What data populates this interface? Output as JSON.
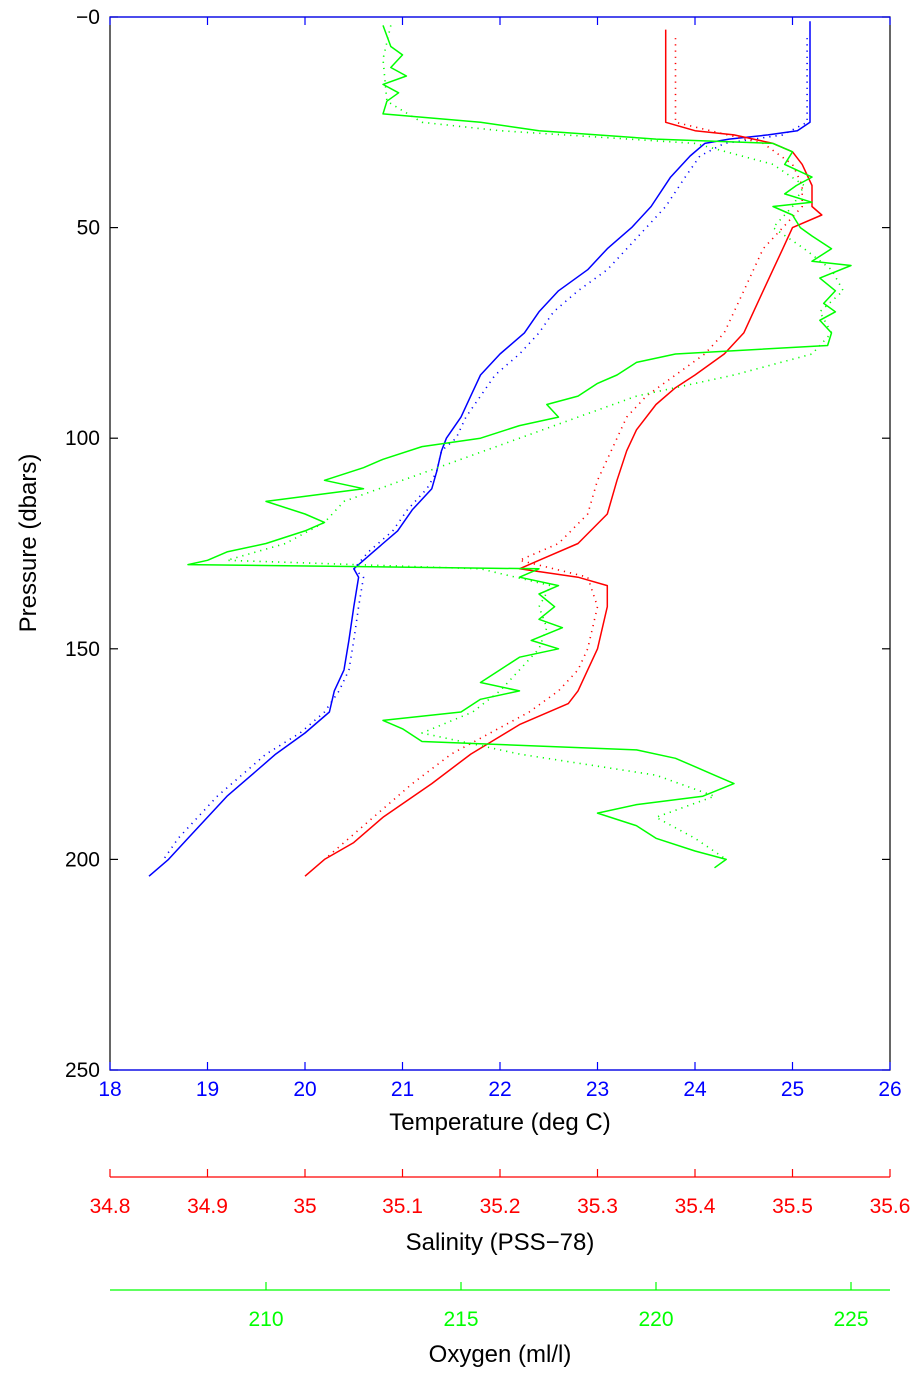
{
  "chart_data": {
    "type": "line",
    "title": "",
    "ylabel": "Pressure (dbars)",
    "ylim": [
      0,
      250
    ],
    "y_reversed": true,
    "yticks": [
      0,
      50,
      100,
      150,
      200,
      250
    ],
    "ytick_labels": [
      "−0",
      "50",
      "100",
      "150",
      "200",
      "250"
    ],
    "axes": [
      {
        "id": "temperature",
        "label": "Temperature (deg C)",
        "color": "#0000ff",
        "xlim": [
          18,
          26
        ],
        "ticks": [
          18,
          19,
          20,
          21,
          22,
          23,
          24,
          25,
          26
        ],
        "tick_labels": [
          "18",
          "19",
          "20",
          "21",
          "22",
          "23",
          "24",
          "25",
          "26"
        ]
      },
      {
        "id": "salinity",
        "label": "Salinity (PSS−78)",
        "color": "#ff0000",
        "xlim": [
          34.8,
          35.6
        ],
        "ticks": [
          34.8,
          34.9,
          35.0,
          35.1,
          35.2,
          35.3,
          35.4,
          35.5,
          35.6
        ],
        "tick_labels": [
          "34.8",
          "34.9",
          "35",
          "35.1",
          "35.2",
          "35.3",
          "35.4",
          "35.5",
          "35.6"
        ]
      },
      {
        "id": "oxygen",
        "label": "Oxygen (ml/l)",
        "color": "#00ff00",
        "xlim": [
          206,
          226
        ],
        "ticks": [
          210,
          215,
          220,
          225
        ],
        "tick_labels": [
          "210",
          "215",
          "220",
          "225"
        ]
      }
    ],
    "series": [
      {
        "axis": "temperature",
        "style": "solid",
        "pressure": [
          1,
          25,
          27,
          28,
          29,
          30,
          33,
          38,
          45,
          50,
          55,
          60,
          65,
          70,
          75,
          80,
          85,
          90,
          95,
          100,
          103,
          108,
          112,
          117,
          122,
          127,
          131,
          133,
          140,
          148,
          155,
          160,
          165,
          170,
          175,
          180,
          185,
          190,
          195,
          200,
          204
        ],
        "values": [
          25.18,
          25.18,
          25.05,
          24.75,
          24.35,
          24.1,
          23.95,
          23.75,
          23.55,
          23.35,
          23.1,
          22.9,
          22.6,
          22.4,
          22.25,
          22.0,
          21.8,
          21.7,
          21.6,
          21.45,
          21.4,
          21.35,
          21.3,
          21.1,
          20.95,
          20.7,
          20.5,
          20.55,
          20.5,
          20.45,
          20.4,
          20.3,
          20.25,
          20.0,
          19.7,
          19.45,
          19.2,
          19.0,
          18.8,
          18.6,
          18.4
        ]
      },
      {
        "axis": "temperature",
        "style": "dotted",
        "pressure": [
          5,
          25,
          28,
          30,
          33,
          38,
          45,
          50,
          55,
          60,
          65,
          70,
          75,
          80,
          85,
          90,
          95,
          100,
          103,
          108,
          112,
          117,
          122,
          127,
          131,
          133,
          140,
          148,
          155,
          160,
          165,
          170,
          175,
          180,
          185,
          190,
          195,
          200
        ],
        "values": [
          25.15,
          25.15,
          24.9,
          24.3,
          24.05,
          23.9,
          23.7,
          23.5,
          23.3,
          23.1,
          22.8,
          22.55,
          22.4,
          22.2,
          21.95,
          21.8,
          21.65,
          21.55,
          21.4,
          21.35,
          21.25,
          21.05,
          20.9,
          20.65,
          20.5,
          20.6,
          20.55,
          20.5,
          20.45,
          20.35,
          20.2,
          19.95,
          19.6,
          19.35,
          19.1,
          18.9,
          18.7,
          18.55
        ]
      },
      {
        "axis": "salinity",
        "style": "solid",
        "pressure": [
          3,
          15,
          25,
          27,
          28,
          29,
          30,
          32,
          35,
          40,
          45,
          47,
          50,
          55,
          60,
          65,
          70,
          75,
          80,
          85,
          88,
          92,
          98,
          103,
          110,
          118,
          125,
          129,
          131,
          133,
          135,
          140,
          150,
          155,
          160,
          163,
          168,
          175,
          182,
          190,
          196,
          200,
          204
        ],
        "values": [
          35.37,
          35.37,
          35.37,
          35.4,
          35.44,
          35.46,
          35.48,
          35.5,
          35.51,
          35.52,
          35.52,
          35.53,
          35.5,
          35.49,
          35.48,
          35.47,
          35.46,
          35.45,
          35.43,
          35.4,
          35.38,
          35.36,
          35.34,
          35.33,
          35.32,
          35.31,
          35.28,
          35.24,
          35.22,
          35.28,
          35.31,
          35.31,
          35.3,
          35.29,
          35.28,
          35.27,
          35.22,
          35.17,
          35.13,
          35.08,
          35.05,
          35.02,
          35.0
        ]
      },
      {
        "axis": "salinity",
        "style": "dotted",
        "pressure": [
          5,
          25,
          30,
          35,
          40,
          45,
          50,
          55,
          60,
          65,
          70,
          75,
          80,
          85,
          90,
          95,
          100,
          105,
          110,
          118,
          125,
          129,
          133,
          140,
          150,
          155,
          160,
          165,
          170,
          175,
          182,
          190,
          196,
          200
        ],
        "values": [
          35.38,
          35.38,
          35.47,
          35.5,
          35.51,
          35.51,
          35.49,
          35.47,
          35.46,
          35.45,
          35.44,
          35.43,
          35.41,
          35.38,
          35.35,
          35.33,
          35.32,
          35.31,
          35.3,
          35.29,
          35.26,
          35.22,
          35.29,
          35.3,
          35.29,
          35.28,
          35.26,
          35.23,
          35.19,
          35.15,
          35.11,
          35.07,
          35.04,
          35.02
        ]
      },
      {
        "axis": "oxygen",
        "style": "solid",
        "pressure": [
          2,
          7,
          9,
          12,
          14,
          16,
          18,
          20,
          23,
          25,
          27,
          29,
          30,
          32,
          35,
          38,
          40,
          42,
          44,
          45,
          47,
          50,
          52,
          55,
          58,
          59,
          62,
          65,
          68,
          70,
          72,
          75,
          78,
          80,
          82,
          85,
          87,
          90,
          92,
          95,
          97,
          100,
          102,
          105,
          107,
          110,
          112,
          115,
          118,
          120,
          122,
          125,
          127,
          129,
          130,
          131,
          133,
          135,
          137,
          140,
          143,
          145,
          148,
          150,
          152,
          155,
          158,
          160,
          162,
          165,
          167,
          169,
          172,
          174,
          176,
          178,
          180,
          182,
          185,
          187,
          189,
          192,
          195,
          198,
          200,
          202
        ],
        "values": [
          213.0,
          213.2,
          213.5,
          213.2,
          213.6,
          213.0,
          213.4,
          213.1,
          213.0,
          215.5,
          217.0,
          220.0,
          223.0,
          223.5,
          223.3,
          224.0,
          223.6,
          223.3,
          224.0,
          223.0,
          223.5,
          223.7,
          224.0,
          224.5,
          224.0,
          225.0,
          224.2,
          224.6,
          224.3,
          224.6,
          224.2,
          224.5,
          224.4,
          220.5,
          219.5,
          219.0,
          218.5,
          218.0,
          217.2,
          217.5,
          216.5,
          215.5,
          214.0,
          213.0,
          212.5,
          211.5,
          212.5,
          210.0,
          211.0,
          211.5,
          211.0,
          210.0,
          209.0,
          208.5,
          208.0,
          217.0,
          216.5,
          217.5,
          217.0,
          217.4,
          217.0,
          217.6,
          216.8,
          217.5,
          216.5,
          216.0,
          215.5,
          216.5,
          215.5,
          215.0,
          213.0,
          213.5,
          214.0,
          219.5,
          220.5,
          221.0,
          221.5,
          222.0,
          221.2,
          219.5,
          218.5,
          219.5,
          220.0,
          221.0,
          221.8,
          221.5
        ]
      },
      {
        "axis": "oxygen",
        "style": "dotted",
        "pressure": [
          2,
          10,
          20,
          25,
          27,
          30,
          35,
          40,
          45,
          50,
          55,
          60,
          65,
          70,
          75,
          80,
          85,
          90,
          95,
          100,
          105,
          110,
          115,
          120,
          125,
          129,
          131,
          135,
          140,
          145,
          150,
          155,
          160,
          165,
          170,
          175,
          180,
          185,
          190,
          195,
          200
        ],
        "values": [
          213.2,
          213.0,
          213.1,
          214.0,
          216.0,
          221.0,
          223.0,
          223.8,
          223.5,
          223.0,
          223.8,
          224.5,
          224.8,
          224.2,
          224.5,
          224.0,
          222.0,
          219.5,
          218.0,
          216.5,
          215.0,
          213.5,
          212.0,
          211.5,
          210.5,
          209.0,
          215.5,
          217.3,
          217.0,
          217.2,
          217.0,
          216.5,
          216.0,
          215.3,
          214.0,
          216.5,
          220.0,
          221.5,
          220.0,
          221.0,
          221.8
        ]
      }
    ]
  }
}
